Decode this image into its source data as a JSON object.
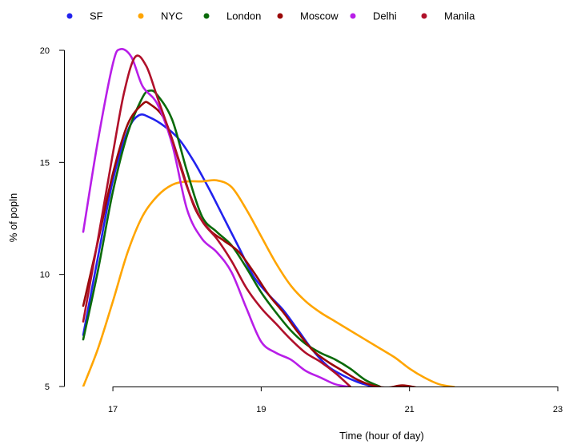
{
  "chart_data": {
    "type": "line",
    "title": "",
    "xlabel": "Time (hour of day)",
    "ylabel": "% of popln",
    "xlim": [
      16.6,
      23
    ],
    "ylim": [
      5,
      20
    ],
    "xticks": [
      17,
      19,
      21,
      23
    ],
    "yticks": [
      5,
      10,
      15,
      20
    ],
    "grid": false,
    "legend_position": "top",
    "series": [
      {
        "name": "SF",
        "color": "#2222ee",
        "points": [
          [
            16.6,
            7.3
          ],
          [
            16.8,
            10.8
          ],
          [
            17.0,
            14.2
          ],
          [
            17.2,
            16.4
          ],
          [
            17.35,
            17.1
          ],
          [
            17.5,
            17.0
          ],
          [
            17.7,
            16.6
          ],
          [
            17.9,
            16.0
          ],
          [
            18.1,
            15.0
          ],
          [
            18.3,
            13.8
          ],
          [
            18.5,
            12.5
          ],
          [
            18.7,
            11.2
          ],
          [
            18.9,
            9.9
          ],
          [
            19.1,
            9.1
          ],
          [
            19.3,
            8.4
          ],
          [
            19.5,
            7.5
          ],
          [
            19.7,
            6.6
          ],
          [
            19.9,
            5.9
          ],
          [
            20.1,
            5.5
          ],
          [
            20.3,
            5.2
          ],
          [
            20.5,
            5.0
          ]
        ]
      },
      {
        "name": "NYC",
        "color": "#ffa500",
        "points": [
          [
            16.6,
            5.0
          ],
          [
            16.8,
            6.7
          ],
          [
            17.0,
            8.8
          ],
          [
            17.2,
            11.0
          ],
          [
            17.4,
            12.6
          ],
          [
            17.6,
            13.5
          ],
          [
            17.8,
            14.0
          ],
          [
            18.0,
            14.15
          ],
          [
            18.2,
            14.15
          ],
          [
            18.4,
            14.2
          ],
          [
            18.6,
            13.9
          ],
          [
            18.8,
            12.9
          ],
          [
            19.0,
            11.7
          ],
          [
            19.2,
            10.5
          ],
          [
            19.4,
            9.5
          ],
          [
            19.6,
            8.8
          ],
          [
            19.8,
            8.3
          ],
          [
            20.0,
            7.9
          ],
          [
            20.2,
            7.5
          ],
          [
            20.4,
            7.1
          ],
          [
            20.6,
            6.7
          ],
          [
            20.8,
            6.3
          ],
          [
            21.0,
            5.8
          ],
          [
            21.2,
            5.4
          ],
          [
            21.4,
            5.1
          ],
          [
            21.6,
            4.98
          ]
        ]
      },
      {
        "name": "London",
        "color": "#0a6a0a",
        "points": [
          [
            16.6,
            7.1
          ],
          [
            16.8,
            10.2
          ],
          [
            17.0,
            13.7
          ],
          [
            17.2,
            16.3
          ],
          [
            17.4,
            17.9
          ],
          [
            17.5,
            18.2
          ],
          [
            17.6,
            18.0
          ],
          [
            17.8,
            16.9
          ],
          [
            18.0,
            14.6
          ],
          [
            18.2,
            12.6
          ],
          [
            18.4,
            11.9
          ],
          [
            18.6,
            11.3
          ],
          [
            18.8,
            10.3
          ],
          [
            19.0,
            9.2
          ],
          [
            19.2,
            8.3
          ],
          [
            19.4,
            7.5
          ],
          [
            19.6,
            6.9
          ],
          [
            19.8,
            6.5
          ],
          [
            20.0,
            6.2
          ],
          [
            20.2,
            5.8
          ],
          [
            20.4,
            5.3
          ],
          [
            20.6,
            5.0
          ]
        ]
      },
      {
        "name": "Moscow",
        "color": "#9a0808",
        "points": [
          [
            16.6,
            8.6
          ],
          [
            16.8,
            11.5
          ],
          [
            17.0,
            14.5
          ],
          [
            17.2,
            16.7
          ],
          [
            17.4,
            17.6
          ],
          [
            17.5,
            17.6
          ],
          [
            17.7,
            16.9
          ],
          [
            17.9,
            15.0
          ],
          [
            18.1,
            13.0
          ],
          [
            18.3,
            12.0
          ],
          [
            18.5,
            11.5
          ],
          [
            18.7,
            11.0
          ],
          [
            18.9,
            10.1
          ],
          [
            19.1,
            9.1
          ],
          [
            19.3,
            8.3
          ],
          [
            19.5,
            7.4
          ],
          [
            19.7,
            6.6
          ],
          [
            19.9,
            6.1
          ],
          [
            20.1,
            5.7
          ],
          [
            20.3,
            5.3
          ],
          [
            20.5,
            5.05
          ],
          [
            20.7,
            4.95
          ],
          [
            20.9,
            5.05
          ],
          [
            21.1,
            4.95
          ]
        ]
      },
      {
        "name": "Delhi",
        "color": "#b81ee8",
        "points": [
          [
            16.6,
            11.9
          ],
          [
            16.8,
            16.0
          ],
          [
            17.0,
            19.4
          ],
          [
            17.1,
            20.05
          ],
          [
            17.25,
            19.7
          ],
          [
            17.4,
            18.4
          ],
          [
            17.6,
            17.6
          ],
          [
            17.8,
            15.8
          ],
          [
            18.0,
            12.9
          ],
          [
            18.2,
            11.6
          ],
          [
            18.4,
            11.0
          ],
          [
            18.6,
            10.1
          ],
          [
            18.8,
            8.5
          ],
          [
            19.0,
            7.0
          ],
          [
            19.2,
            6.5
          ],
          [
            19.4,
            6.2
          ],
          [
            19.6,
            5.7
          ],
          [
            19.8,
            5.4
          ],
          [
            20.0,
            5.1
          ],
          [
            20.2,
            4.98
          ]
        ]
      },
      {
        "name": "Manila",
        "color": "#b0102a",
        "points": [
          [
            16.6,
            7.9
          ],
          [
            16.8,
            11.6
          ],
          [
            17.0,
            15.4
          ],
          [
            17.15,
            18.1
          ],
          [
            17.3,
            19.7
          ],
          [
            17.45,
            19.3
          ],
          [
            17.6,
            17.9
          ],
          [
            17.8,
            16.0
          ],
          [
            18.0,
            13.9
          ],
          [
            18.2,
            12.4
          ],
          [
            18.4,
            11.6
          ],
          [
            18.6,
            10.6
          ],
          [
            18.8,
            9.4
          ],
          [
            19.0,
            8.5
          ],
          [
            19.2,
            7.8
          ],
          [
            19.4,
            7.1
          ],
          [
            19.6,
            6.5
          ],
          [
            19.8,
            6.1
          ],
          [
            20.0,
            5.6
          ],
          [
            20.2,
            5.0
          ]
        ]
      }
    ]
  }
}
